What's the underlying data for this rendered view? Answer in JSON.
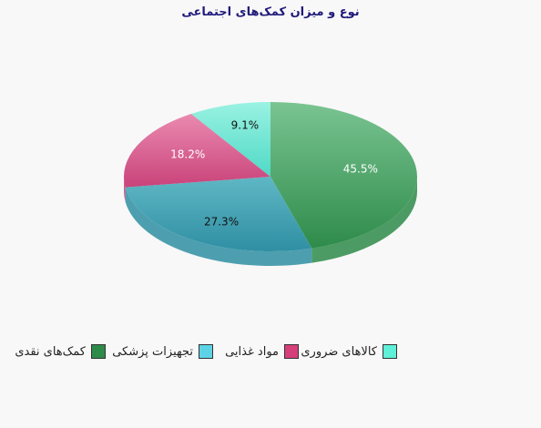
{
  "chart_data": {
    "type": "pie",
    "title": "نوع و میزان کمک‌های اجتماعی",
    "slices": [
      {
        "label": "کمک‌های نقدی",
        "value": 45.5,
        "display": "45.5%",
        "color": "#2e8b4a",
        "light": "#7ac492"
      },
      {
        "label": "تجهیزات پزشکی",
        "value": 27.3,
        "display": "27.3%",
        "color": "#2f8fa3",
        "light": "#5fb7c4"
      },
      {
        "label": "مواد غذایی",
        "value": 18.2,
        "display": "18.2%",
        "color": "#c9437a",
        "light": "#ea8ab0"
      },
      {
        "label": "کالاهای ضروری",
        "value": 9.1,
        "display": "9.1%",
        "color": "#4fd9c6",
        "light": "#9af2e2"
      }
    ],
    "legend": {
      "position": "bottom"
    }
  }
}
